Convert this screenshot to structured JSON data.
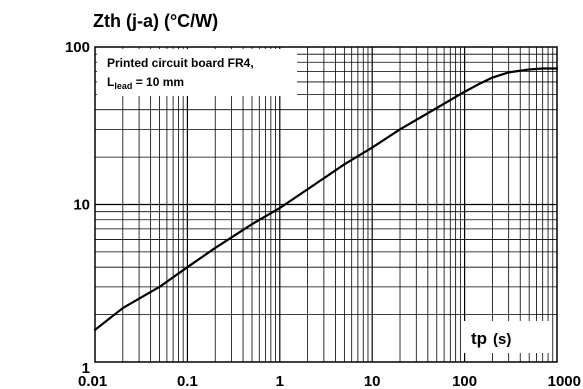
{
  "chart_data": {
    "type": "line",
    "title": "Zth (j-a) (°C/W)",
    "xlabel": "tp (s)",
    "xlabel_main": "tp",
    "xlabel_unit": "(s)",
    "ylabel": "Zth (j-a) (°C/W)",
    "x_scale": "log",
    "y_scale": "log",
    "xlim": [
      0.01,
      1000
    ],
    "ylim": [
      1,
      100
    ],
    "x_ticks": [
      {
        "value": 0.01,
        "label": "0.01"
      },
      {
        "value": 0.1,
        "label": "0.1"
      },
      {
        "value": 1,
        "label": "1"
      },
      {
        "value": 10,
        "label": "10"
      },
      {
        "value": 100,
        "label": "100"
      },
      {
        "value": 1000,
        "label": "1000"
      }
    ],
    "y_ticks": [
      {
        "value": 1,
        "label": "1"
      },
      {
        "value": 10,
        "label": "10"
      },
      {
        "value": 100,
        "label": "100"
      }
    ],
    "grid": true,
    "annotation": {
      "line1": "Printed circuit board FR4,",
      "line2_prefix": "L",
      "line2_sub": "lead",
      "line2_suffix": " = 10 mm"
    },
    "series": [
      {
        "x": [
          0.01,
          0.02,
          0.05,
          0.1,
          0.2,
          0.5,
          1,
          2,
          5,
          10,
          20,
          50,
          100,
          150,
          200,
          300,
          500,
          700,
          1000
        ],
        "y": [
          1.6,
          2.2,
          3.0,
          4.0,
          5.3,
          7.5,
          9.5,
          12.5,
          18,
          23,
          30,
          41,
          52,
          59,
          64,
          69,
          72,
          73,
          73
        ]
      }
    ]
  }
}
